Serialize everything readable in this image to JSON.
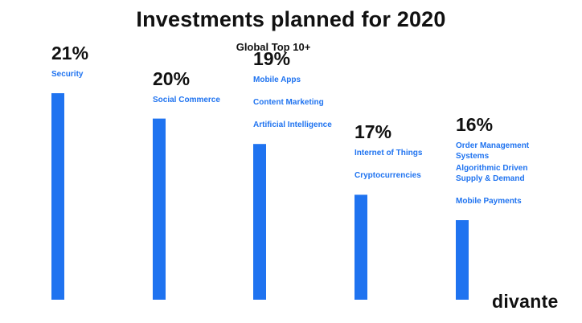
{
  "chart_data": {
    "type": "bar",
    "title": "Investments planned for 2020",
    "subtitle": "Global Top 10+",
    "ylim": [
      0,
      21
    ],
    "grid": false,
    "bar_color": "#1f73f0",
    "bars": [
      {
        "value": 21,
        "value_label": "21%",
        "categories": [
          "Security"
        ]
      },
      {
        "value": 20,
        "value_label": "20%",
        "categories": [
          "Social Commerce"
        ]
      },
      {
        "value": 19,
        "value_label": "19%",
        "categories": [
          "Mobile Apps",
          "Content Marketing",
          "Artificial Intelligence"
        ]
      },
      {
        "value": 17,
        "value_label": "17%",
        "categories": [
          "Internet of Things",
          "Cryptocurrencies"
        ]
      },
      {
        "value": 16,
        "value_label": "16%",
        "categories": [
          "Order Management Systems",
          "Algorithmic Driven Supply & Demand",
          "Mobile Payments"
        ]
      }
    ]
  },
  "brand": {
    "name": "divante"
  }
}
